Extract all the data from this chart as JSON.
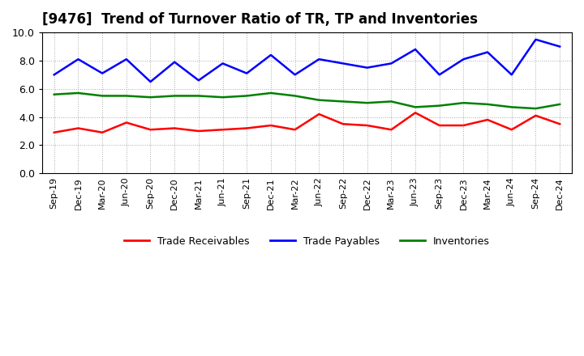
{
  "title": "[9476]  Trend of Turnover Ratio of TR, TP and Inventories",
  "xlabels": [
    "Sep-19",
    "Dec-19",
    "Mar-20",
    "Jun-20",
    "Sep-20",
    "Dec-20",
    "Mar-21",
    "Jun-21",
    "Sep-21",
    "Dec-21",
    "Mar-22",
    "Jun-22",
    "Sep-22",
    "Dec-22",
    "Mar-23",
    "Jun-23",
    "Sep-23",
    "Dec-23",
    "Mar-24",
    "Jun-24",
    "Sep-24",
    "Dec-24"
  ],
  "trade_receivables": [
    2.9,
    3.2,
    2.9,
    3.6,
    3.1,
    3.2,
    3.0,
    3.1,
    3.2,
    3.4,
    3.1,
    4.2,
    3.5,
    3.4,
    3.1,
    4.3,
    3.4,
    3.4,
    3.8,
    3.1,
    4.1,
    3.5
  ],
  "trade_payables": [
    7.0,
    8.1,
    7.1,
    8.1,
    6.5,
    7.9,
    6.6,
    7.8,
    7.1,
    8.4,
    7.0,
    8.1,
    7.8,
    7.5,
    7.8,
    8.8,
    7.0,
    8.1,
    8.6,
    7.0,
    9.5,
    9.0
  ],
  "inventories": [
    5.6,
    5.7,
    5.5,
    5.5,
    5.4,
    5.5,
    5.5,
    5.4,
    5.5,
    5.7,
    5.5,
    5.2,
    5.1,
    5.0,
    5.1,
    4.7,
    4.8,
    5.0,
    4.9,
    4.7,
    4.6,
    4.9
  ],
  "ylim": [
    0.0,
    10.0
  ],
  "yticks": [
    0.0,
    2.0,
    4.0,
    6.0,
    8.0,
    10.0
  ],
  "legend_labels": [
    "Trade Receivables",
    "Trade Payables",
    "Inventories"
  ],
  "line_colors": [
    "#ff0000",
    "#0000ff",
    "#008000"
  ],
  "line_width": 1.8,
  "bg_color": "#ffffff",
  "plot_bg_color": "#ffffff",
  "grid_color": "#aaaaaa",
  "title_fontsize": 12,
  "label_fontsize": 9,
  "legend_fontsize": 9
}
